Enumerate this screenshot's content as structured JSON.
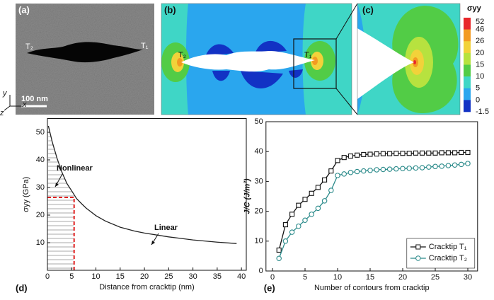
{
  "panels": {
    "a": {
      "label": "(a)",
      "tip_left": "T₂",
      "tip_right": "T₁",
      "scale_bar": "100 nm"
    },
    "b": {
      "label": "(b)",
      "tip_left": "T₂",
      "tip_right": "T₁"
    },
    "c": {
      "label": "(c)"
    }
  },
  "axes_glyph": {
    "y": "y",
    "z": "z",
    "x": "x"
  },
  "colorbar": {
    "title": "σyy",
    "levels": [
      52,
      46,
      26,
      20,
      15,
      10,
      5,
      0,
      -1.5
    ],
    "colors": [
      "#e8262a",
      "#f39a22",
      "#f2d23a",
      "#b7e23f",
      "#52cc46",
      "#3fd6c6",
      "#2aa6ee",
      "#1232c4"
    ]
  },
  "chart_data": [
    {
      "type": "line",
      "panel_label": "(d)",
      "x_label": "Distance from cracktip (nm)",
      "y_label": "σyy (GPa)",
      "x": [
        0.2,
        1,
        2,
        3,
        4,
        5,
        6,
        7,
        8,
        10,
        12,
        15,
        18,
        20,
        25,
        30,
        35,
        39
      ],
      "series": [
        {
          "color": "#222222",
          "values": [
            52.3,
            46.5,
            40.5,
            35.5,
            31.5,
            28.8,
            26,
            24.2,
            22.5,
            19.8,
            17.8,
            15.6,
            14.2,
            13.5,
            12.1,
            11,
            10.2,
            9.7
          ]
        }
      ],
      "xlim": [
        0,
        41
      ],
      "ylim": [
        0,
        55
      ],
      "xticks": [
        0,
        5,
        10,
        15,
        20,
        25,
        30,
        35,
        40
      ],
      "yticks": [
        10,
        20,
        30,
        40,
        50
      ],
      "annotations": [
        "Nonlinear",
        "Linear"
      ],
      "threshold": {
        "x": 5.5,
        "y": 26.4,
        "color": "#e02020"
      }
    },
    {
      "type": "line",
      "panel_label": "(e)",
      "x_label": "Number of contours from cracktip",
      "y_label": "J/C (J/m²)",
      "x": [
        1,
        2,
        3,
        4,
        5,
        6,
        7,
        8,
        9,
        10,
        11,
        12,
        13,
        14,
        15,
        16,
        17,
        18,
        19,
        20,
        21,
        22,
        23,
        24,
        25,
        26,
        27,
        28,
        29,
        30
      ],
      "series": [
        {
          "name": "Cracktip T₁",
          "color": "#111111",
          "marker": "square",
          "values": [
            7,
            15.5,
            19,
            22,
            24,
            26,
            28,
            30.5,
            33.5,
            37,
            38,
            38.5,
            38.8,
            39,
            39.1,
            39.2,
            39.3,
            39.3,
            39.4,
            39.4,
            39.4,
            39.5,
            39.5,
            39.5,
            39.5,
            39.6,
            39.6,
            39.6,
            39.7,
            39.7
          ]
        },
        {
          "name": "Cracktip T₂",
          "color": "#2a8a8a",
          "marker": "circle",
          "values": [
            4.2,
            10,
            13,
            15,
            17,
            19,
            21,
            23.5,
            27,
            32,
            32.5,
            33,
            33.3,
            33.5,
            33.7,
            33.9,
            34,
            34.1,
            34.2,
            34.3,
            34.4,
            34.5,
            34.6,
            34.8,
            35,
            35.1,
            35.3,
            35.5,
            35.7,
            36
          ]
        }
      ],
      "xlim": [
        -1,
        31.5
      ],
      "ylim": [
        0,
        50
      ],
      "xticks": [
        0,
        5,
        10,
        15,
        20,
        25,
        30
      ],
      "yticks": [
        0,
        10,
        20,
        30,
        40,
        50
      ],
      "legend": "bottom-right"
    }
  ]
}
